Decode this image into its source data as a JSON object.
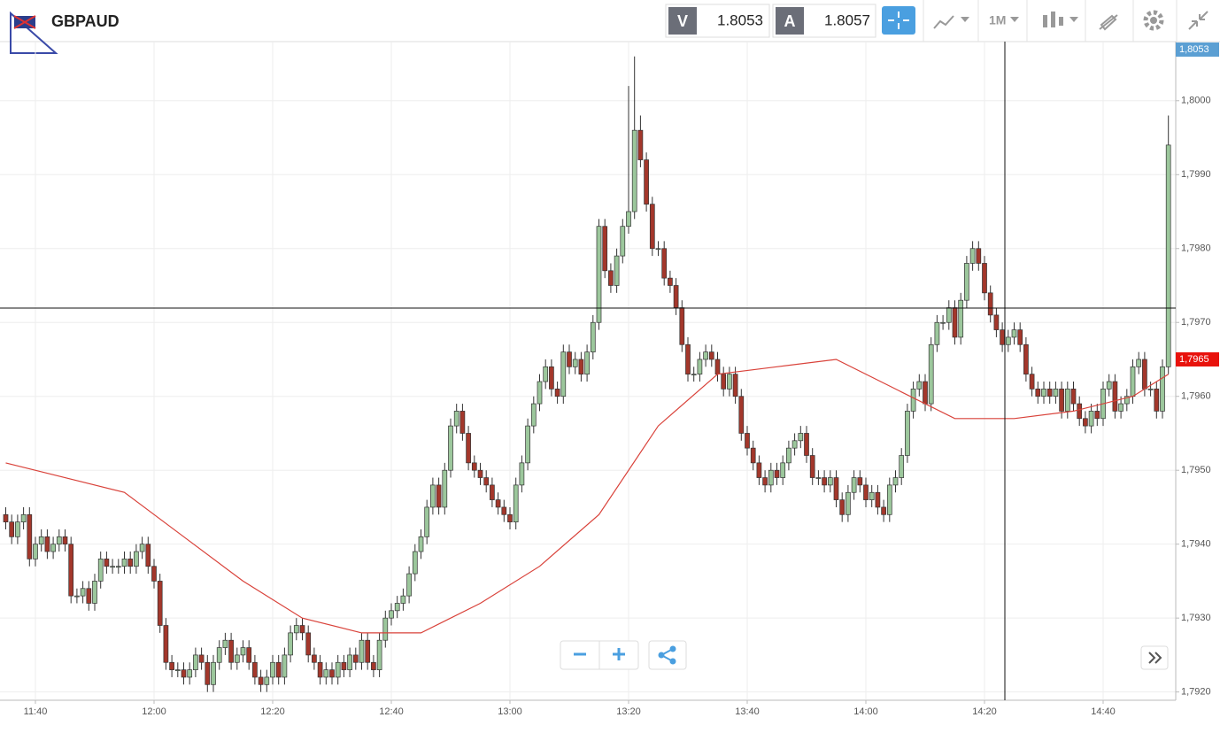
{
  "toolbar": {
    "symbol": "GBPAUD",
    "sell_label": "V",
    "sell_price": "1.8053",
    "buy_label": "A",
    "buy_price": "1.8057",
    "timeframe": "1M"
  },
  "chart_data": {
    "type": "candlestick",
    "categories": [
      null,
      null,
      null,
      null,
      null,
      "11:40",
      null,
      null,
      null,
      null,
      null,
      null,
      null,
      null,
      null,
      null,
      null,
      null,
      null,
      null,
      null,
      null,
      null,
      null,
      null,
      "12:00",
      null,
      null,
      null,
      null,
      null,
      null,
      null,
      null,
      null,
      null,
      null,
      null,
      null,
      null,
      null,
      null,
      null,
      null,
      null,
      "12:20",
      null,
      null,
      null,
      null,
      null,
      null,
      null,
      null,
      null,
      null,
      null,
      null,
      null,
      null,
      null,
      null,
      null,
      null,
      null,
      "12:40",
      null,
      null,
      null,
      null,
      null,
      null,
      null,
      null,
      null,
      null,
      null,
      null,
      null,
      null,
      null,
      null,
      null,
      null,
      null,
      "13:00",
      null,
      null,
      null,
      null,
      null,
      null,
      null,
      null,
      null,
      null,
      null,
      null,
      null,
      null,
      null,
      null,
      null,
      null,
      null,
      "13:20",
      null,
      null,
      null,
      null,
      null,
      null,
      null,
      null,
      null,
      null,
      null,
      null,
      null,
      null,
      null,
      null,
      null,
      null,
      null,
      "13:40",
      null,
      null,
      null,
      null,
      null,
      null,
      null,
      null,
      null,
      null,
      null,
      null,
      null,
      null,
      null,
      null,
      null,
      null,
      null,
      "14:00",
      null,
      null,
      null,
      null,
      null,
      null,
      null,
      null,
      null,
      null,
      null,
      null,
      null,
      null,
      null,
      null,
      null,
      null,
      null,
      "14:20",
      null,
      null,
      null,
      null,
      null,
      null,
      null,
      null,
      null,
      null,
      null,
      null,
      null,
      null,
      null,
      null,
      null,
      null,
      null,
      "14:40",
      null,
      null,
      null,
      null,
      null,
      null,
      null,
      null,
      null,
      null,
      null
    ],
    "open": [
      1.7944,
      1.7943,
      1.7941,
      1.7943,
      1.7944,
      1.7938,
      1.794,
      1.7941,
      1.7939,
      1.794,
      1.7941,
      1.794,
      1.7933,
      1.7933,
      1.7934,
      1.7932,
      1.7935,
      1.7938,
      1.7937,
      1.7937,
      1.7937,
      1.7938,
      1.7937,
      1.7939,
      1.794,
      1.7937,
      1.7935,
      1.7929,
      1.7924,
      1.7923,
      1.7923,
      1.7922,
      1.7923,
      1.7925,
      1.7924,
      1.7921,
      1.7924,
      1.7926,
      1.7927,
      1.7924,
      1.7925,
      1.7926,
      1.7924,
      1.7922,
      1.7921,
      1.7922,
      1.7924,
      1.7922,
      1.7925,
      1.7928,
      1.7929,
      1.7928,
      1.7925,
      1.7924,
      1.7922,
      1.7923,
      1.7922,
      1.7924,
      1.7923,
      1.7925,
      1.7924,
      1.7927,
      1.7924,
      1.7923,
      1.7927,
      1.793,
      1.7931,
      1.7932,
      1.7933,
      1.7936,
      1.7939,
      1.7941,
      1.7945,
      1.7948,
      1.7945,
      1.795,
      1.7956,
      1.7958,
      1.7955,
      1.7951,
      1.795,
      1.7949,
      1.7948,
      1.7946,
      1.7945,
      1.7944,
      1.7943,
      1.7948,
      1.7951,
      1.7956,
      1.7959,
      1.7962,
      1.7964,
      1.7961,
      1.796,
      1.7966,
      1.7964,
      1.7965,
      1.7963,
      1.7966,
      1.797,
      1.7983,
      1.7977,
      1.7975,
      1.7979,
      1.7983,
      1.7985,
      1.7996,
      1.7992,
      1.7986,
      1.798,
      1.798,
      1.7976,
      1.7975,
      1.7972,
      1.7967,
      1.7963,
      1.7963,
      1.7965,
      1.7966,
      1.7965,
      1.7963,
      1.7961,
      1.7963,
      1.796,
      1.7955,
      1.7953,
      1.7951,
      1.7949,
      1.7948,
      1.795,
      1.7949,
      1.7951,
      1.7953,
      1.7954,
      1.7955,
      1.7952,
      1.7949,
      1.7949,
      1.7948,
      1.7949,
      1.7946,
      1.7944,
      1.7947,
      1.7949,
      1.7948,
      1.7946,
      1.7947,
      1.7945,
      1.7944,
      1.7948,
      1.7949,
      1.7952,
      1.7958,
      1.7961,
      1.7962,
      1.7959,
      1.7967,
      1.797,
      1.797,
      1.7972,
      1.7968,
      1.7973,
      1.7978,
      1.798,
      1.7978,
      1.7974,
      1.7971,
      1.7969,
      1.7967,
      1.7968,
      1.7969,
      1.7967,
      1.7963,
      1.7961,
      1.796,
      1.7961,
      1.796,
      1.7961,
      1.7958,
      1.7961,
      1.7959,
      1.7957,
      1.7956,
      1.7958,
      1.7957,
      1.7961,
      1.7962,
      1.7958,
      1.7959,
      1.796,
      1.7964,
      1.7965,
      1.7961,
      1.7961,
      1.7958,
      1.7964
    ],
    "high": [
      1.7945,
      1.7944,
      1.7944,
      1.7945,
      1.7945,
      1.7941,
      1.7942,
      1.7942,
      1.7941,
      1.7942,
      1.7942,
      1.7941,
      1.7934,
      1.7935,
      1.7935,
      1.7936,
      1.7939,
      1.7939,
      1.7938,
      1.7938,
      1.7939,
      1.7939,
      1.794,
      1.7941,
      1.7941,
      1.7938,
      1.7936,
      1.793,
      1.7925,
      1.7924,
      1.7924,
      1.7924,
      1.7926,
      1.7926,
      1.7925,
      1.7925,
      1.7927,
      1.7928,
      1.7928,
      1.7926,
      1.7927,
      1.7927,
      1.7925,
      1.7923,
      1.7923,
      1.7925,
      1.7925,
      1.7926,
      1.7929,
      1.793,
      1.793,
      1.7929,
      1.7926,
      1.7925,
      1.7924,
      1.7924,
      1.7925,
      1.7925,
      1.7926,
      1.7926,
      1.7928,
      1.7928,
      1.7925,
      1.7928,
      1.7931,
      1.7932,
      1.7933,
      1.7934,
      1.7937,
      1.794,
      1.7942,
      1.7946,
      1.7949,
      1.7949,
      1.7951,
      1.7957,
      1.7959,
      1.7959,
      1.7956,
      1.7952,
      1.7951,
      1.795,
      1.7949,
      1.7947,
      1.7946,
      1.7945,
      1.7949,
      1.7952,
      1.7957,
      1.796,
      1.7963,
      1.7965,
      1.7965,
      1.7962,
      1.7967,
      1.7967,
      1.7966,
      1.7966,
      1.7967,
      1.7971,
      1.7984,
      1.7984,
      1.7978,
      1.798,
      1.7984,
      1.8002,
      1.8006,
      1.7998,
      1.7993,
      1.7987,
      1.7981,
      1.7981,
      1.7977,
      1.7976,
      1.7973,
      1.7968,
      1.7964,
      1.7966,
      1.7967,
      1.7967,
      1.7966,
      1.7964,
      1.7964,
      1.7964,
      1.7961,
      1.7956,
      1.7954,
      1.7952,
      1.795,
      1.7951,
      1.7951,
      1.7952,
      1.7954,
      1.7955,
      1.7956,
      1.7956,
      1.7953,
      1.795,
      1.795,
      1.795,
      1.795,
      1.7947,
      1.7948,
      1.795,
      1.795,
      1.7949,
      1.7948,
      1.7948,
      1.7946,
      1.7949,
      1.795,
      1.7953,
      1.7959,
      1.7962,
      1.7963,
      1.7963,
      1.7968,
      1.7971,
      1.7971,
      1.7973,
      1.7973,
      1.7974,
      1.7979,
      1.7981,
      1.7981,
      1.7979,
      1.7975,
      1.7972,
      1.797,
      1.7969,
      1.797,
      1.797,
      1.7968,
      1.7964,
      1.7962,
      1.7962,
      1.7962,
      1.7962,
      1.7962,
      1.7962,
      1.7962,
      1.796,
      1.7958,
      1.7959,
      1.7959,
      1.7962,
      1.7963,
      1.7963,
      1.796,
      1.7961,
      1.7965,
      1.7966,
      1.7966,
      1.7962,
      1.7962,
      1.7965,
      1.7998
    ],
    "low": [
      1.7942,
      1.794,
      1.794,
      1.7942,
      1.7937,
      1.7937,
      1.7939,
      1.7938,
      1.7938,
      1.7939,
      1.7939,
      1.7932,
      1.7932,
      1.7932,
      1.7931,
      1.7931,
      1.7934,
      1.7936,
      1.7936,
      1.7936,
      1.7936,
      1.7936,
      1.7936,
      1.7938,
      1.7936,
      1.7934,
      1.7928,
      1.7923,
      1.7922,
      1.7922,
      1.7921,
      1.7921,
      1.7922,
      1.7923,
      1.792,
      1.792,
      1.7923,
      1.7925,
      1.7923,
      1.7923,
      1.7924,
      1.7923,
      1.7921,
      1.792,
      1.792,
      1.7921,
      1.7921,
      1.7921,
      1.7924,
      1.7927,
      1.7927,
      1.7924,
      1.7923,
      1.7921,
      1.7921,
      1.7921,
      1.7921,
      1.7922,
      1.7922,
      1.7923,
      1.7923,
      1.7923,
      1.7922,
      1.7922,
      1.7926,
      1.7929,
      1.793,
      1.7931,
      1.7932,
      1.7935,
      1.7938,
      1.794,
      1.7944,
      1.7944,
      1.7944,
      1.7949,
      1.7955,
      1.7954,
      1.795,
      1.7949,
      1.7948,
      1.7947,
      1.7945,
      1.7944,
      1.7943,
      1.7942,
      1.7942,
      1.7947,
      1.795,
      1.7955,
      1.7958,
      1.7961,
      1.796,
      1.7959,
      1.7959,
      1.7963,
      1.7963,
      1.7962,
      1.7962,
      1.7965,
      1.7969,
      1.7976,
      1.7974,
      1.7974,
      1.7978,
      1.7982,
      1.7984,
      1.7991,
      1.7985,
      1.7979,
      1.7979,
      1.7975,
      1.7974,
      1.7971,
      1.7966,
      1.7962,
      1.7962,
      1.7962,
      1.7964,
      1.7964,
      1.7962,
      1.796,
      1.796,
      1.7959,
      1.7954,
      1.7952,
      1.795,
      1.7948,
      1.7947,
      1.7947,
      1.7948,
      1.7948,
      1.795,
      1.7952,
      1.7953,
      1.7951,
      1.7948,
      1.7948,
      1.7947,
      1.7947,
      1.7945,
      1.7943,
      1.7943,
      1.7946,
      1.7947,
      1.7945,
      1.7945,
      1.7944,
      1.7943,
      1.7943,
      1.7947,
      1.7948,
      1.7951,
      1.7957,
      1.796,
      1.7958,
      1.7958,
      1.7966,
      1.7969,
      1.7969,
      1.7967,
      1.7967,
      1.7972,
      1.7977,
      1.7977,
      1.7973,
      1.797,
      1.7968,
      1.7966,
      1.7966,
      1.7967,
      1.7966,
      1.7962,
      1.796,
      1.7959,
      1.7959,
      1.7959,
      1.7959,
      1.7957,
      1.7957,
      1.7958,
      1.7956,
      1.7955,
      1.7955,
      1.7956,
      1.7956,
      1.796,
      1.7957,
      1.7957,
      1.7958,
      1.7959,
      1.7963,
      1.796,
      1.796,
      1.7957,
      1.7957,
      1.7963
    ],
    "close": [
      1.7943,
      1.7941,
      1.7943,
      1.7944,
      1.7938,
      1.794,
      1.7941,
      1.7939,
      1.794,
      1.7941,
      1.794,
      1.7933,
      1.7933,
      1.7934,
      1.7932,
      1.7935,
      1.7938,
      1.7937,
      1.7937,
      1.7937,
      1.7938,
      1.7937,
      1.7939,
      1.794,
      1.7937,
      1.7935,
      1.7929,
      1.7924,
      1.7923,
      1.7923,
      1.7922,
      1.7923,
      1.7925,
      1.7924,
      1.7921,
      1.7924,
      1.7926,
      1.7927,
      1.7924,
      1.7925,
      1.7926,
      1.7924,
      1.7922,
      1.7921,
      1.7922,
      1.7924,
      1.7922,
      1.7925,
      1.7928,
      1.7929,
      1.7928,
      1.7925,
      1.7924,
      1.7922,
      1.7923,
      1.7922,
      1.7924,
      1.7923,
      1.7925,
      1.7924,
      1.7927,
      1.7924,
      1.7923,
      1.7927,
      1.793,
      1.7931,
      1.7932,
      1.7933,
      1.7936,
      1.7939,
      1.7941,
      1.7945,
      1.7948,
      1.7945,
      1.795,
      1.7956,
      1.7958,
      1.7955,
      1.7951,
      1.795,
      1.7949,
      1.7948,
      1.7946,
      1.7945,
      1.7944,
      1.7943,
      1.7948,
      1.7951,
      1.7956,
      1.7959,
      1.7962,
      1.7964,
      1.7961,
      1.796,
      1.7966,
      1.7964,
      1.7965,
      1.7963,
      1.7966,
      1.797,
      1.7983,
      1.7977,
      1.7975,
      1.7979,
      1.7983,
      1.7985,
      1.7996,
      1.7992,
      1.7986,
      1.798,
      1.798,
      1.7976,
      1.7975,
      1.7972,
      1.7967,
      1.7963,
      1.7963,
      1.7965,
      1.7966,
      1.7965,
      1.7963,
      1.7961,
      1.7963,
      1.796,
      1.7955,
      1.7953,
      1.7951,
      1.7949,
      1.7948,
      1.795,
      1.7949,
      1.7951,
      1.7953,
      1.7954,
      1.7955,
      1.7952,
      1.7949,
      1.7949,
      1.7948,
      1.7949,
      1.7946,
      1.7944,
      1.7947,
      1.7949,
      1.7948,
      1.7946,
      1.7947,
      1.7945,
      1.7944,
      1.7948,
      1.7949,
      1.7952,
      1.7958,
      1.7961,
      1.7962,
      1.7959,
      1.7967,
      1.797,
      1.797,
      1.7972,
      1.7968,
      1.7973,
      1.7978,
      1.798,
      1.7978,
      1.7974,
      1.7971,
      1.7969,
      1.7967,
      1.7968,
      1.7969,
      1.7967,
      1.7963,
      1.7961,
      1.796,
      1.7961,
      1.796,
      1.7961,
      1.7958,
      1.7961,
      1.7959,
      1.7957,
      1.7956,
      1.7958,
      1.7957,
      1.7961,
      1.7962,
      1.7958,
      1.7959,
      1.796,
      1.7964,
      1.7965,
      1.7961,
      1.7961,
      1.7958,
      1.7964,
      1.7994
    ],
    "up_color": "#9cc79c",
    "down_color": "#a3372b",
    "moving_average": {
      "color": "#d9423a",
      "x": [
        0,
        10,
        20,
        30,
        40,
        50,
        60,
        70,
        80,
        90,
        100,
        110,
        120,
        130,
        140,
        150,
        160,
        170,
        180,
        190,
        196
      ],
      "values": [
        1.7951,
        1.7949,
        1.7947,
        1.7941,
        1.7935,
        1.793,
        1.7928,
        1.7928,
        1.7932,
        1.7937,
        1.7944,
        1.7956,
        1.7963,
        1.7964,
        1.7965,
        1.7961,
        1.7957,
        1.7957,
        1.7958,
        1.796,
        1.7963
      ]
    },
    "ylim": [
      1.7919,
      1.8008
    ],
    "yticks": [
      {
        "value": 1.792,
        "label": "1,7920"
      },
      {
        "value": 1.793,
        "label": "1,7930"
      },
      {
        "value": 1.794,
        "label": "1,7940"
      },
      {
        "value": 1.795,
        "label": "1,7950"
      },
      {
        "value": 1.796,
        "label": "1,7960"
      },
      {
        "value": 1.797,
        "label": "1,7970"
      },
      {
        "value": 1.798,
        "label": "1,7980"
      },
      {
        "value": 1.799,
        "label": "1,7990"
      },
      {
        "value": 1.8,
        "label": "1,8000"
      }
    ],
    "grid": true,
    "price_tags": [
      {
        "value": 1.8053,
        "label": "1,8053",
        "color": "#5b9fd3"
      },
      {
        "value": 1.7965,
        "label": "1,7965",
        "color": "#e8120c"
      }
    ]
  }
}
